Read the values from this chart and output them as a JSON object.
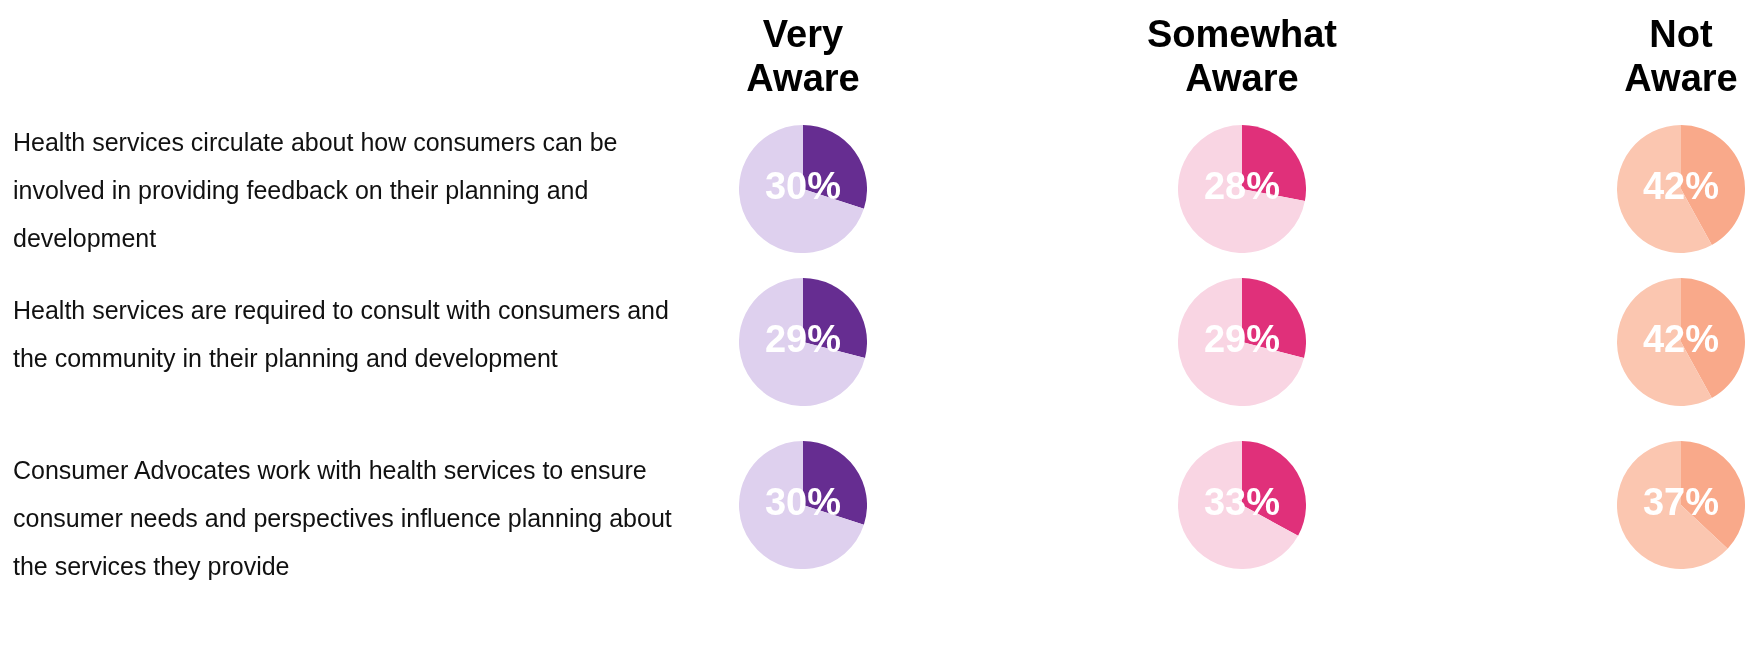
{
  "chart_data": [
    {
      "type": "other",
      "annotations": [
        "Health services circulate about how consumers can be involved in providing feedback on their planning and development",
        "Health services are required to consult with consumers and the community in their planning and development",
        "Consumer Advocates work with health services to ensure consumer needs and perspectives influence planning about the services they provide"
      ]
    },
    {
      "type": "pie",
      "title": "Very Aware",
      "categories": [
        null,
        null
      ],
      "values": [
        30,
        70
      ],
      "colors": [
        "#662d91",
        "#ded0ee"
      ],
      "value_labels": [
        "30%",
        null
      ]
    },
    {
      "type": "pie",
      "title": "Somewhat Aware",
      "categories": [
        null,
        null
      ],
      "values": [
        28,
        72
      ],
      "colors": [
        "#e0307a",
        "#f9d5e3"
      ],
      "value_labels": [
        "28%",
        null
      ]
    },
    {
      "type": "pie",
      "title": "Not Aware",
      "categories": [
        null,
        null
      ],
      "values": [
        42,
        58
      ],
      "colors": [
        "#f9a98a",
        "#fbc6b0"
      ],
      "value_labels": [
        "42%",
        null
      ]
    },
    {
      "type": "pie",
      "categories": [
        null,
        null
      ],
      "values": [
        29,
        71
      ],
      "colors": [
        "#662d91",
        "#ded0ee"
      ],
      "value_labels": [
        "29%",
        null
      ]
    },
    {
      "type": "pie",
      "categories": [
        null,
        null
      ],
      "values": [
        29,
        71
      ],
      "colors": [
        "#e0307a",
        "#f9d5e3"
      ],
      "value_labels": [
        "29%",
        null
      ]
    },
    {
      "type": "pie",
      "categories": [
        null,
        null
      ],
      "values": [
        42,
        58
      ],
      "colors": [
        "#f9a98a",
        "#fbc6b0"
      ],
      "value_labels": [
        "42%",
        null
      ]
    },
    {
      "type": "pie",
      "categories": [
        null,
        null
      ],
      "values": [
        30,
        70
      ],
      "colors": [
        "#662d91",
        "#ded0ee"
      ],
      "value_labels": [
        "30%",
        null
      ]
    },
    {
      "type": "pie",
      "categories": [
        null,
        null
      ],
      "values": [
        33,
        67
      ],
      "colors": [
        "#e0307a",
        "#f9d5e3"
      ],
      "value_labels": [
        "33%",
        null
      ]
    },
    {
      "type": "pie",
      "categories": [
        null,
        null
      ],
      "values": [
        37,
        63
      ],
      "colors": [
        "#f9a98a",
        "#fbc6b0"
      ],
      "value_labels": [
        "37%",
        null
      ]
    }
  ]
}
